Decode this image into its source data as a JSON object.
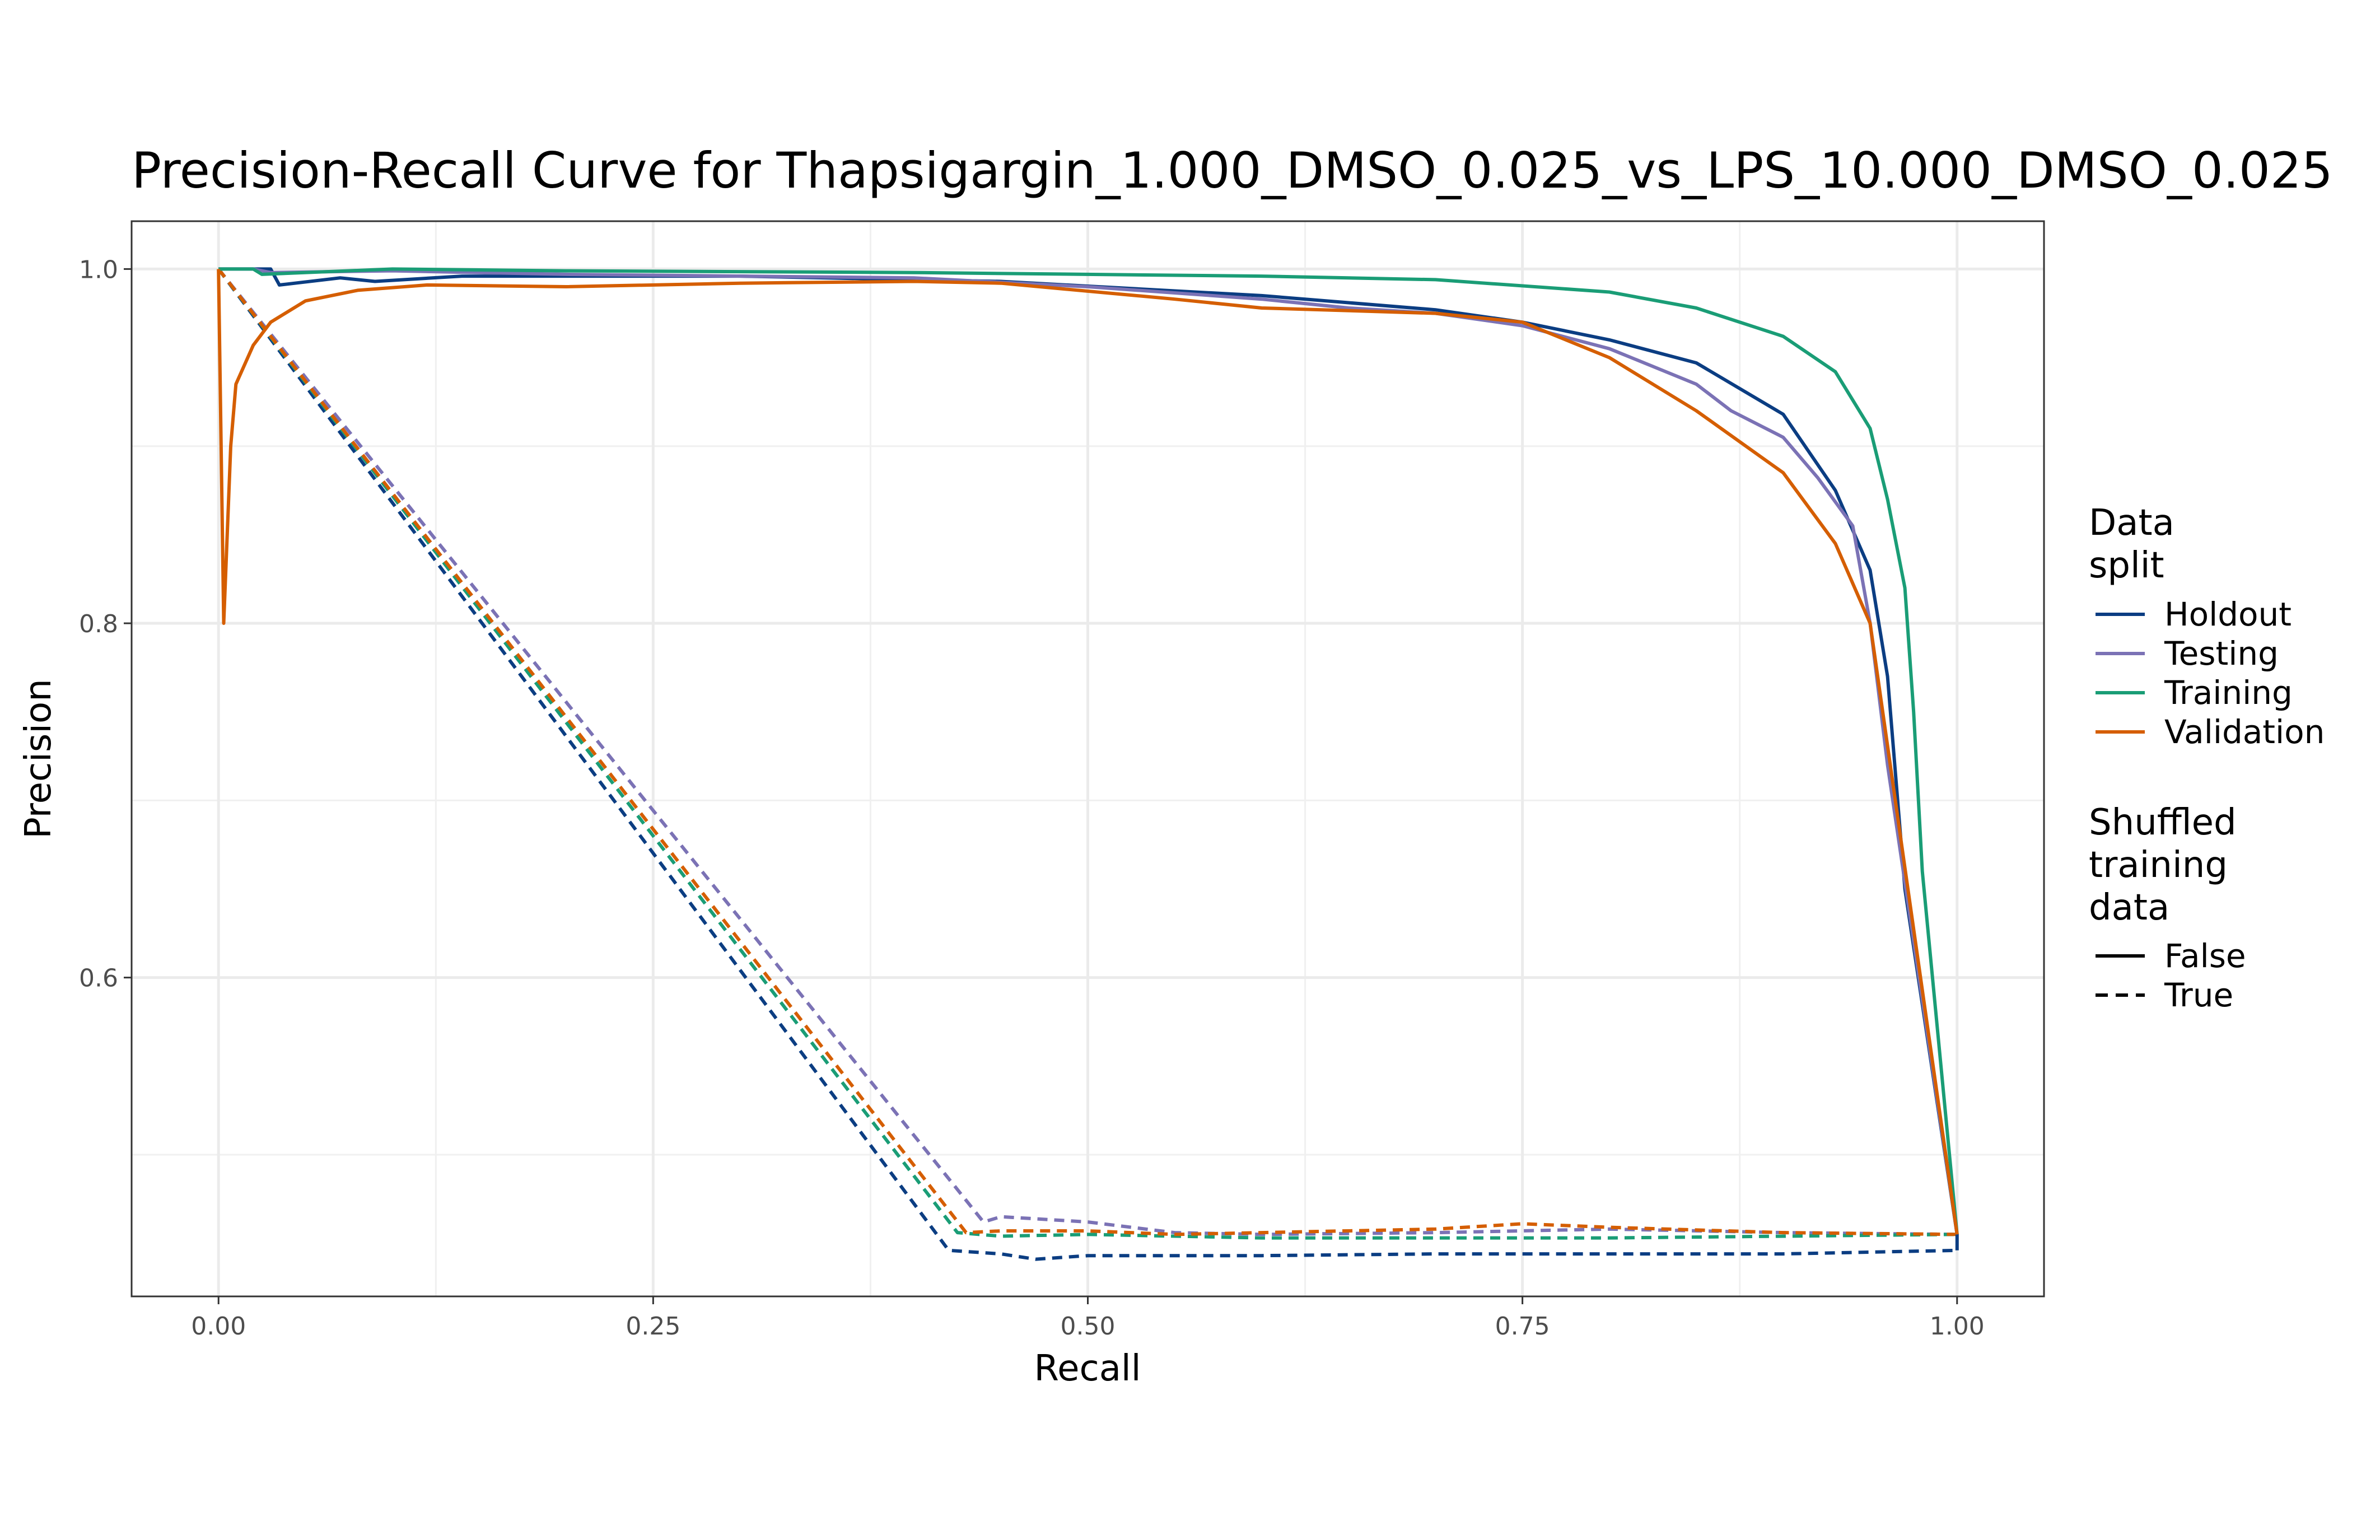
{
  "chart_data": {
    "type": "line",
    "title": "Precision-Recall Curve for Thapsigargin_1.000_DMSO_0.025_vs_LPS_10.000_DMSO_0.025",
    "xlabel": "Recall",
    "ylabel": "Precision",
    "xlim": [
      -0.05,
      1.05
    ],
    "ylim": [
      0.42,
      1.027
    ],
    "x_ticks": [
      0.0,
      0.25,
      0.5,
      0.75,
      1.0
    ],
    "x_tick_labels": [
      "0.00",
      "0.25",
      "0.50",
      "0.75",
      "1.00"
    ],
    "y_ticks": [
      0.6,
      0.8,
      1.0
    ],
    "y_tick_labels": [
      "0.6",
      "0.8",
      "1.0"
    ],
    "grid": true,
    "legend_position": "right",
    "legend": {
      "color_title": "Data split",
      "color_entries": [
        {
          "label": "Holdout",
          "color": "#0b3d82"
        },
        {
          "label": "Testing",
          "color": "#7b72b5"
        },
        {
          "label": "Training",
          "color": "#1a9d76"
        },
        {
          "label": "Validation",
          "color": "#d55e00"
        }
      ],
      "linetype_title": "Shuffled training data",
      "linetype_entries": [
        {
          "label": "False",
          "dash": "solid"
        },
        {
          "label": "True",
          "dash": "dashed"
        }
      ]
    },
    "series": [
      {
        "split": "Holdout",
        "shuffled": "True",
        "color": "#0b3d82",
        "x": [
          0.0,
          0.42,
          0.45,
          0.47,
          0.5,
          0.6,
          0.7,
          0.8,
          0.9,
          1.0
        ],
        "y": [
          1.0,
          0.446,
          0.444,
          0.441,
          0.443,
          0.443,
          0.444,
          0.444,
          0.444,
          0.446
        ]
      },
      {
        "split": "Testing",
        "shuffled": "True",
        "color": "#7b72b5",
        "x": [
          0.0,
          0.44,
          0.45,
          0.5,
          0.55,
          0.6,
          0.7,
          0.8,
          0.9,
          1.0
        ],
        "y": [
          1.0,
          0.462,
          0.465,
          0.462,
          0.456,
          0.455,
          0.456,
          0.458,
          0.456,
          0.455
        ]
      },
      {
        "split": "Training",
        "shuffled": "True",
        "color": "#1a9d76",
        "x": [
          0.0,
          0.425,
          0.45,
          0.5,
          0.6,
          0.7,
          0.8,
          0.9,
          1.0
        ],
        "y": [
          1.0,
          0.456,
          0.454,
          0.455,
          0.453,
          0.453,
          0.453,
          0.454,
          0.455
        ]
      },
      {
        "split": "Validation",
        "shuffled": "True",
        "color": "#d55e00",
        "x": [
          0.0,
          0.43,
          0.45,
          0.5,
          0.55,
          0.6,
          0.7,
          0.75,
          0.8,
          0.9,
          1.0
        ],
        "y": [
          1.0,
          0.456,
          0.457,
          0.457,
          0.455,
          0.456,
          0.458,
          0.461,
          0.459,
          0.456,
          0.455
        ]
      },
      {
        "split": "Holdout",
        "shuffled": "False",
        "color": "#0b3d82",
        "x": [
          0.0,
          0.03,
          0.035,
          0.07,
          0.09,
          0.14,
          0.3,
          0.45,
          0.6,
          0.7,
          0.75,
          0.8,
          0.85,
          0.9,
          0.93,
          0.95,
          0.96,
          0.97,
          1.0,
          1.0
        ],
        "y": [
          1.0,
          1.0,
          0.991,
          0.995,
          0.993,
          0.996,
          0.996,
          0.993,
          0.985,
          0.977,
          0.97,
          0.96,
          0.947,
          0.918,
          0.875,
          0.83,
          0.77,
          0.65,
          0.455,
          0.446
        ]
      },
      {
        "split": "Testing",
        "shuffled": "False",
        "color": "#7b72b5",
        "x": [
          0.0,
          0.02,
          0.03,
          0.1,
          0.2,
          0.4,
          0.5,
          0.6,
          0.65,
          0.7,
          0.75,
          0.8,
          0.85,
          0.87,
          0.9,
          0.92,
          0.94,
          0.95,
          0.96,
          1.0
        ],
        "y": [
          1.0,
          1.0,
          0.998,
          0.999,
          0.997,
          0.995,
          0.99,
          0.983,
          0.978,
          0.975,
          0.968,
          0.955,
          0.935,
          0.92,
          0.905,
          0.882,
          0.855,
          0.8,
          0.72,
          0.455
        ]
      },
      {
        "split": "Training",
        "shuffled": "False",
        "color": "#1a9d76",
        "x": [
          0.0,
          0.02,
          0.025,
          0.1,
          0.2,
          0.4,
          0.6,
          0.7,
          0.8,
          0.85,
          0.9,
          0.93,
          0.95,
          0.96,
          0.97,
          0.975,
          0.98,
          1.0
        ],
        "y": [
          1.0,
          1.0,
          0.997,
          1.0,
          0.999,
          0.998,
          0.996,
          0.994,
          0.987,
          0.978,
          0.962,
          0.942,
          0.91,
          0.87,
          0.82,
          0.75,
          0.66,
          0.455
        ]
      },
      {
        "split": "Validation",
        "shuffled": "False",
        "color": "#d55e00",
        "x": [
          0.0,
          0.003,
          0.007,
          0.01,
          0.02,
          0.03,
          0.05,
          0.08,
          0.12,
          0.2,
          0.3,
          0.4,
          0.45,
          0.55,
          0.6,
          0.7,
          0.75,
          0.8,
          0.85,
          0.9,
          0.93,
          0.95,
          1.0
        ],
        "y": [
          1.0,
          0.8,
          0.9,
          0.935,
          0.957,
          0.97,
          0.982,
          0.988,
          0.991,
          0.99,
          0.992,
          0.993,
          0.992,
          0.983,
          0.978,
          0.975,
          0.97,
          0.95,
          0.92,
          0.885,
          0.845,
          0.8,
          0.455
        ]
      }
    ]
  }
}
